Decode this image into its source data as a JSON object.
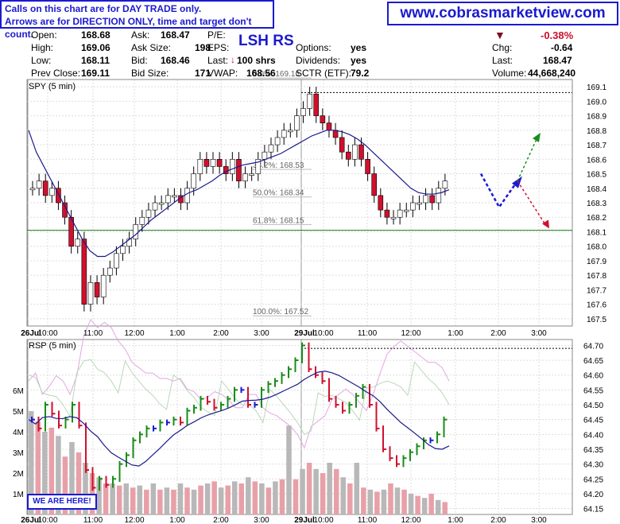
{
  "notice": {
    "line1": "Calls on this chart are for DAY TRADE only.",
    "line2": "Arrows are for DIRECTION ONLY, time and target don't count."
  },
  "website": "www.cobrasmarketview.com",
  "symbol_heading": "LSH RS",
  "marker_label": "WE ARE HERE!",
  "quote": {
    "open_label": "Open:",
    "open": "168.68",
    "high_label": "High:",
    "high": "169.06",
    "low_label": "Low:",
    "low": "168.11",
    "prev_close_label": "Prev Close:",
    "prev_close": "169.11",
    "ask_label": "Ask:",
    "ask": "168.47",
    "ask_size_label": "Ask Size:",
    "ask_size": "198",
    "bid_label": "Bid:",
    "bid": "168.46",
    "bid_size_label": "Bid Size:",
    "bid_size": "171",
    "pe_label": "P/E:",
    "eps_label": "EPS:",
    "last_label": "Last:",
    "last_trade": "100 shrs",
    "vwap_label": "VWAP:",
    "vwap": "168.56",
    "options_label": "Options:",
    "options": "yes",
    "dividends_label": "Dividends:",
    "dividends": "yes",
    "sctr_label": "SCTR (ETF):",
    "sctr": "79.2",
    "change_pct": "-0.38%",
    "chg_label": "Chg:",
    "chg": "-0.64",
    "last2_label": "Last:",
    "last": "168.47",
    "volume_label": "Volume:",
    "volume": "44,668,240"
  },
  "colors": {
    "up": "#1a8c1a",
    "down": "#d0102e",
    "neutral": "#1a1ad0",
    "ma": "#1a1a8c",
    "accent": "#1a1ad0"
  },
  "chart_data": [
    {
      "type": "candlestick",
      "title": "SPY (5 min)",
      "x_ticks": [
        "26Jul",
        "10:00",
        "11:00",
        "12:00",
        "1:00",
        "2:00",
        "3:00",
        "29Jul",
        "10:00",
        "11:00",
        "12:00",
        "1:00",
        "2:00",
        "3:00"
      ],
      "ylim": [
        167.45,
        169.15
      ],
      "y_ticks": [
        "169.1",
        "169.0",
        "168.9",
        "168.8",
        "168.7",
        "168.6",
        "168.5",
        "168.4",
        "168.3",
        "168.2",
        "168.1",
        "168.0",
        "167.9",
        "167.8",
        "167.7",
        "167.6",
        "167.5"
      ],
      "fib_levels": [
        {
          "label": "0.0%: 169.16",
          "value": 169.16
        },
        {
          "label": "38.2%: 168.53",
          "value": 168.53
        },
        {
          "label": "50.0%: 168.34",
          "value": 168.34
        },
        {
          "label": "61.8%: 168.15",
          "value": 168.15
        },
        {
          "label": "100.0%: 167.52",
          "value": 167.52
        }
      ],
      "support_level": 168.11,
      "prior_high": 169.06,
      "close": [
        168.4,
        168.45,
        168.35,
        168.4,
        168.3,
        168.2,
        168.0,
        168.05,
        167.6,
        167.75,
        167.65,
        167.8,
        167.85,
        167.95,
        168.0,
        168.05,
        168.15,
        168.2,
        168.25,
        168.3,
        168.3,
        168.35,
        168.35,
        168.3,
        168.4,
        168.5,
        168.6,
        168.55,
        168.6,
        168.55,
        168.5,
        168.6,
        168.45,
        168.5,
        168.5,
        168.6,
        168.65,
        168.7,
        168.75,
        168.8,
        168.8,
        168.9,
        168.95,
        169.05,
        168.9,
        168.85,
        168.8,
        168.75,
        168.65,
        168.6,
        168.7,
        168.6,
        168.5,
        168.35,
        168.25,
        168.2,
        168.2,
        168.25,
        168.25,
        168.3,
        168.3,
        168.35,
        168.3,
        168.4,
        168.45
      ],
      "ma": [
        168.8,
        168.65,
        168.55,
        168.45,
        168.35,
        168.25,
        168.15,
        168.05,
        167.97,
        167.93,
        167.93,
        167.96,
        168.0,
        168.04,
        168.08,
        168.13,
        168.18,
        168.22,
        168.26,
        168.3,
        168.34,
        168.37,
        168.39,
        168.42,
        168.45,
        168.49,
        168.52,
        168.54,
        168.56,
        168.57,
        168.58,
        168.6,
        168.62,
        168.64,
        168.67,
        168.7,
        168.73,
        168.76,
        168.78,
        168.8,
        168.8,
        168.79,
        168.77,
        168.74,
        168.7,
        168.65,
        168.6,
        168.55,
        168.5,
        168.45,
        168.4,
        168.37,
        168.36,
        168.36,
        168.37,
        168.39
      ],
      "projection": {
        "path": [
          [
            1,
            168.5
          ],
          [
            2,
            168.27
          ],
          [
            3,
            168.45
          ]
        ],
        "up_target": 168.75,
        "down_target": 168.15
      }
    },
    {
      "type": "line",
      "title": "RSP (5 min)",
      "ylim": [
        64.13,
        64.72
      ],
      "y_ticks": [
        "64.70",
        "64.65",
        "64.60",
        "64.55",
        "64.50",
        "64.45",
        "64.40",
        "64.35",
        "64.30",
        "64.25",
        "64.20",
        "64.15"
      ],
      "volume_ticks": [
        "6M",
        "5M",
        "4M",
        "3M",
        "2M",
        "1M"
      ],
      "close": [
        64.45,
        64.42,
        64.5,
        64.47,
        64.43,
        64.45,
        64.5,
        64.43,
        64.28,
        64.22,
        64.25,
        64.23,
        64.25,
        64.3,
        64.33,
        64.38,
        64.4,
        64.42,
        64.42,
        64.44,
        64.44,
        64.45,
        64.44,
        64.48,
        64.49,
        64.52,
        64.51,
        64.49,
        64.5,
        64.52,
        64.55,
        64.55,
        64.5,
        64.5,
        64.55,
        64.57,
        64.58,
        64.6,
        64.62,
        64.65,
        64.7,
        64.62,
        64.6,
        64.58,
        64.52,
        64.5,
        64.48,
        64.5,
        64.53,
        64.56,
        64.5,
        64.42,
        64.35,
        64.32,
        64.3,
        64.32,
        64.34,
        64.36,
        64.38,
        64.38,
        64.4,
        64.45
      ],
      "volume_m": [
        5,
        4.5,
        4,
        4.2,
        3.8,
        2.8,
        3.5,
        3,
        2.5,
        2,
        1.8,
        1.5,
        1.5,
        1.4,
        1.5,
        1.3,
        1.4,
        1.2,
        1.5,
        1.2,
        1.3,
        1.2,
        1.5,
        1.3,
        1.2,
        1.4,
        1.5,
        1.6,
        1.3,
        1.4,
        1.6,
        1.5,
        1.8,
        1.6,
        1.5,
        1.3,
        1.6,
        1.7,
        4.3,
        1.7,
        2.2,
        2.5,
        2.2,
        2,
        2.5,
        2.2,
        1.8,
        1.5,
        2.5,
        1.3,
        1.2,
        1.1,
        1.2,
        1.5,
        1.3,
        1.2,
        1,
        0.9,
        0.8,
        1,
        0.7,
        0.6
      ]
    }
  ]
}
